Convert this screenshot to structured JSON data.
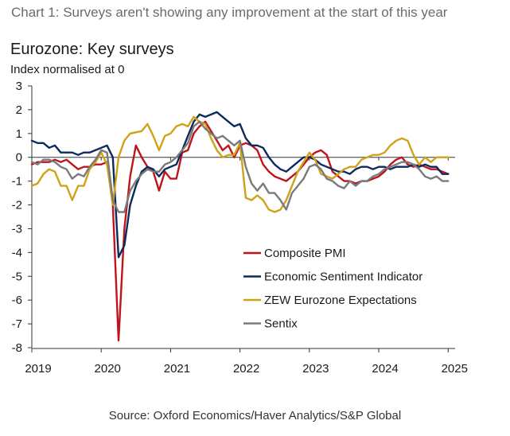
{
  "caption": "Chart 1: Surveys aren't showing any improvement at the start of this year",
  "source": "Source: Oxford Economics/Haver Analytics/S&P Global",
  "chart_data": {
    "type": "line",
    "title": "Eurozone: Key surveys",
    "subtitle": "Index normalised at 0",
    "xlabel": "",
    "ylabel": "",
    "xlim": [
      2019.0,
      2025.1
    ],
    "ylim": [
      -8,
      3
    ],
    "y_ticks": [
      3,
      2,
      1,
      0,
      -1,
      -2,
      -3,
      -4,
      -5,
      -6,
      -7,
      -8
    ],
    "x_ticks": [
      2019,
      2020,
      2021,
      2022,
      2023,
      2024,
      2025
    ],
    "x_tick_labels": [
      "2019",
      "2020",
      "2021",
      "2022",
      "2023",
      "2024",
      "2025"
    ],
    "grid": false,
    "legend_position": "center-right",
    "series": [
      {
        "name": "Composite PMI",
        "color": "#c0141c",
        "x": [
          2019.0,
          2019.083,
          2019.167,
          2019.25,
          2019.333,
          2019.417,
          2019.5,
          2019.583,
          2019.667,
          2019.75,
          2019.833,
          2019.917,
          2020.0,
          2020.083,
          2020.167,
          2020.25,
          2020.333,
          2020.417,
          2020.5,
          2020.583,
          2020.667,
          2020.75,
          2020.833,
          2020.917,
          2021.0,
          2021.083,
          2021.167,
          2021.25,
          2021.333,
          2021.417,
          2021.5,
          2021.583,
          2021.667,
          2021.75,
          2021.833,
          2021.917,
          2022.0,
          2022.083,
          2022.167,
          2022.25,
          2022.333,
          2022.417,
          2022.5,
          2022.583,
          2022.667,
          2022.75,
          2022.833,
          2022.917,
          2023.0,
          2023.083,
          2023.167,
          2023.25,
          2023.333,
          2023.417,
          2023.5,
          2023.583,
          2023.667,
          2023.75,
          2023.833,
          2023.917,
          2024.0,
          2024.083,
          2024.167,
          2024.25,
          2024.333,
          2024.417,
          2024.5,
          2024.583,
          2024.667,
          2024.75,
          2024.833,
          2024.917,
          2025.0
        ],
        "values": [
          -0.3,
          -0.2,
          -0.2,
          -0.2,
          -0.1,
          -0.2,
          -0.1,
          -0.3,
          -0.5,
          -0.4,
          -0.4,
          -0.3,
          -0.3,
          -0.2,
          -2.0,
          -7.7,
          -3.0,
          -0.8,
          0.5,
          0.0,
          -0.4,
          -0.6,
          -1.4,
          -0.6,
          -0.9,
          -0.9,
          0.2,
          0.3,
          1.0,
          1.3,
          1.5,
          1.1,
          0.7,
          0.3,
          0.5,
          0.0,
          0.5,
          0.6,
          0.5,
          0.3,
          -0.3,
          -0.6,
          -0.8,
          -0.9,
          -1.0,
          -0.8,
          -0.6,
          -0.3,
          0.0,
          0.2,
          0.3,
          0.1,
          -0.6,
          -0.8,
          -1.0,
          -1.0,
          -1.1,
          -1.0,
          -1.0,
          -0.9,
          -0.8,
          -0.6,
          -0.3,
          -0.1,
          0.0,
          -0.3,
          -0.4,
          -0.3,
          -0.4,
          -0.5,
          -0.5,
          -0.6,
          -0.7
        ]
      },
      {
        "name": "Economic Sentiment Indicator",
        "color": "#0d2a5e",
        "x": [
          2019.0,
          2019.083,
          2019.167,
          2019.25,
          2019.333,
          2019.417,
          2019.5,
          2019.583,
          2019.667,
          2019.75,
          2019.833,
          2019.917,
          2020.0,
          2020.083,
          2020.167,
          2020.25,
          2020.333,
          2020.417,
          2020.5,
          2020.583,
          2020.667,
          2020.75,
          2020.833,
          2020.917,
          2021.0,
          2021.083,
          2021.167,
          2021.25,
          2021.333,
          2021.417,
          2021.5,
          2021.583,
          2021.667,
          2021.75,
          2021.833,
          2021.917,
          2022.0,
          2022.083,
          2022.167,
          2022.25,
          2022.333,
          2022.417,
          2022.5,
          2022.583,
          2022.667,
          2022.75,
          2022.833,
          2022.917,
          2023.0,
          2023.083,
          2023.167,
          2023.25,
          2023.333,
          2023.417,
          2023.5,
          2023.583,
          2023.667,
          2023.75,
          2023.833,
          2023.917,
          2024.0,
          2024.083,
          2024.167,
          2024.25,
          2024.333,
          2024.417,
          2024.5,
          2024.583,
          2024.667,
          2024.75,
          2024.833,
          2024.917,
          2025.0
        ],
        "values": [
          0.7,
          0.6,
          0.6,
          0.4,
          0.5,
          0.2,
          0.2,
          0.2,
          0.1,
          0.2,
          0.2,
          0.3,
          0.4,
          0.5,
          0.0,
          -4.2,
          -3.7,
          -2.0,
          -1.2,
          -0.6,
          -0.4,
          -0.5,
          -0.8,
          -0.5,
          -0.4,
          -0.3,
          0.3,
          0.9,
          1.5,
          1.8,
          1.7,
          1.8,
          1.9,
          1.7,
          1.5,
          1.3,
          1.4,
          0.8,
          0.5,
          0.5,
          0.4,
          0.0,
          -0.3,
          -0.5,
          -0.6,
          -0.4,
          -0.2,
          0.0,
          0.0,
          -0.1,
          -0.3,
          -0.4,
          -0.5,
          -0.6,
          -0.6,
          -0.7,
          -0.5,
          -0.4,
          -0.4,
          -0.5,
          -0.4,
          -0.4,
          -0.5,
          -0.4,
          -0.4,
          -0.4,
          -0.3,
          -0.4,
          -0.3,
          -0.4,
          -0.4,
          -0.7,
          -0.7
        ]
      },
      {
        "name": "ZEW Eurozone Expectations",
        "color": "#cfa21a",
        "x": [
          2019.0,
          2019.083,
          2019.167,
          2019.25,
          2019.333,
          2019.417,
          2019.5,
          2019.583,
          2019.667,
          2019.75,
          2019.833,
          2019.917,
          2020.0,
          2020.083,
          2020.167,
          2020.25,
          2020.333,
          2020.417,
          2020.5,
          2020.583,
          2020.667,
          2020.75,
          2020.833,
          2020.917,
          2021.0,
          2021.083,
          2021.167,
          2021.25,
          2021.333,
          2021.417,
          2021.5,
          2021.583,
          2021.667,
          2021.75,
          2021.833,
          2021.917,
          2022.0,
          2022.083,
          2022.167,
          2022.25,
          2022.333,
          2022.417,
          2022.5,
          2022.583,
          2022.667,
          2022.75,
          2022.833,
          2022.917,
          2023.0,
          2023.083,
          2023.167,
          2023.25,
          2023.333,
          2023.417,
          2023.5,
          2023.583,
          2023.667,
          2023.75,
          2023.833,
          2023.917,
          2024.0,
          2024.083,
          2024.167,
          2024.25,
          2024.333,
          2024.417,
          2024.5,
          2024.583,
          2024.667,
          2024.75,
          2024.833,
          2024.917,
          2025.0
        ],
        "values": [
          -1.2,
          -1.1,
          -0.7,
          -0.5,
          -0.6,
          -1.2,
          -1.2,
          -1.8,
          -1.2,
          -1.2,
          -0.5,
          -0.2,
          0.2,
          -0.3,
          -2.0,
          0.0,
          0.7,
          1.0,
          1.05,
          1.1,
          1.4,
          0.9,
          0.3,
          0.9,
          1.0,
          1.3,
          1.4,
          1.3,
          1.7,
          1.5,
          1.4,
          0.8,
          0.3,
          0.0,
          0.1,
          0.1,
          0.6,
          -1.7,
          -1.8,
          -1.6,
          -1.8,
          -2.2,
          -2.3,
          -2.2,
          -1.8,
          -1.2,
          -0.6,
          -0.2,
          0.2,
          -0.1,
          -0.7,
          -0.8,
          -0.9,
          -0.7,
          -0.5,
          -0.4,
          -0.4,
          -0.1,
          0.0,
          0.1,
          0.1,
          0.2,
          0.5,
          0.7,
          0.8,
          0.7,
          0.1,
          -0.3,
          0.0,
          -0.2,
          0.0,
          0.0,
          0.0
        ]
      },
      {
        "name": "Sentix",
        "color": "#7a7a7a",
        "x": [
          2019.0,
          2019.083,
          2019.167,
          2019.25,
          2019.333,
          2019.417,
          2019.5,
          2019.583,
          2019.667,
          2019.75,
          2019.833,
          2019.917,
          2020.0,
          2020.083,
          2020.167,
          2020.25,
          2020.333,
          2020.417,
          2020.5,
          2020.583,
          2020.667,
          2020.75,
          2020.833,
          2020.917,
          2021.0,
          2021.083,
          2021.167,
          2021.25,
          2021.333,
          2021.417,
          2021.5,
          2021.583,
          2021.667,
          2021.75,
          2021.833,
          2021.917,
          2022.0,
          2022.083,
          2022.167,
          2022.25,
          2022.333,
          2022.417,
          2022.5,
          2022.583,
          2022.667,
          2022.75,
          2022.833,
          2022.917,
          2023.0,
          2023.083,
          2023.167,
          2023.25,
          2023.333,
          2023.417,
          2023.5,
          2023.583,
          2023.667,
          2023.75,
          2023.833,
          2023.917,
          2024.0,
          2024.083,
          2024.167,
          2024.25,
          2024.333,
          2024.417,
          2024.5,
          2024.583,
          2024.667,
          2024.75,
          2024.833,
          2024.917,
          2025.0
        ],
        "values": [
          -0.2,
          -0.3,
          -0.1,
          -0.1,
          -0.2,
          -0.4,
          -0.5,
          -0.9,
          -0.7,
          -0.8,
          -0.4,
          -0.1,
          0.3,
          0.2,
          -1.8,
          -2.3,
          -2.3,
          -1.4,
          -1.0,
          -0.7,
          -0.5,
          -0.6,
          -0.6,
          -0.3,
          -0.2,
          0.0,
          0.3,
          0.6,
          1.3,
          1.5,
          1.2,
          1.0,
          0.8,
          0.9,
          0.7,
          0.5,
          0.7,
          -0.4,
          -1.1,
          -1.4,
          -1.1,
          -1.5,
          -1.5,
          -1.8,
          -2.2,
          -1.5,
          -1.2,
          -0.9,
          -0.4,
          -0.3,
          -0.5,
          -0.9,
          -1.0,
          -1.2,
          -1.3,
          -1.0,
          -1.2,
          -1.0,
          -1.0,
          -0.8,
          -0.7,
          -0.5,
          -0.4,
          -0.3,
          -0.2,
          -0.2,
          -0.3,
          -0.5,
          -0.8,
          -0.9,
          -0.8,
          -1.0,
          -1.0
        ]
      }
    ]
  }
}
